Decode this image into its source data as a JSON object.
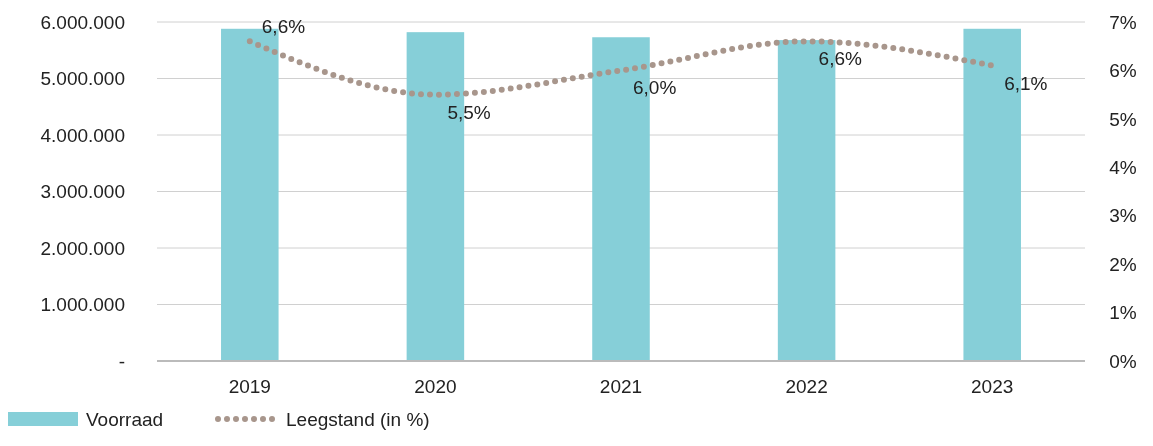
{
  "chart_data": {
    "type": "bar",
    "categories": [
      "2019",
      "2020",
      "2021",
      "2022",
      "2023"
    ],
    "series": [
      {
        "name": "Voorraad",
        "color": "#86cfd8",
        "values": [
          5880000,
          5820000,
          5730000,
          5680000,
          5880000
        ]
      },
      {
        "name": "Leegstand (in %)",
        "type": "line",
        "axis": "y2",
        "color": "#a8968c",
        "values": [
          6.6,
          5.5,
          6.0,
          6.6,
          6.1
        ],
        "value_labels": [
          "6,6%",
          "5,5%",
          "6,0%",
          "6,6%",
          "6,1%"
        ]
      }
    ],
    "ylim": [
      0,
      6000000
    ],
    "yticks": [
      {
        "value": 0,
        "label": "-"
      },
      {
        "value": 1000000,
        "label": "1.000.000"
      },
      {
        "value": 2000000,
        "label": "2.000.000"
      },
      {
        "value": 3000000,
        "label": "3.000.000"
      },
      {
        "value": 4000000,
        "label": "4.000.000"
      },
      {
        "value": 5000000,
        "label": "5.000.000"
      },
      {
        "value": 6000000,
        "label": "6.000.000"
      }
    ],
    "y2lim": [
      0,
      7
    ],
    "y2ticks": [
      {
        "value": 0,
        "label": "0%"
      },
      {
        "value": 1,
        "label": "1%"
      },
      {
        "value": 2,
        "label": "2%"
      },
      {
        "value": 3,
        "label": "3%"
      },
      {
        "value": 4,
        "label": "4%"
      },
      {
        "value": 5,
        "label": "5%"
      },
      {
        "value": 6,
        "label": "6%"
      },
      {
        "value": 7,
        "label": "7%"
      }
    ],
    "grid": "y",
    "legend": "bottom left",
    "line_style": "dotted"
  }
}
